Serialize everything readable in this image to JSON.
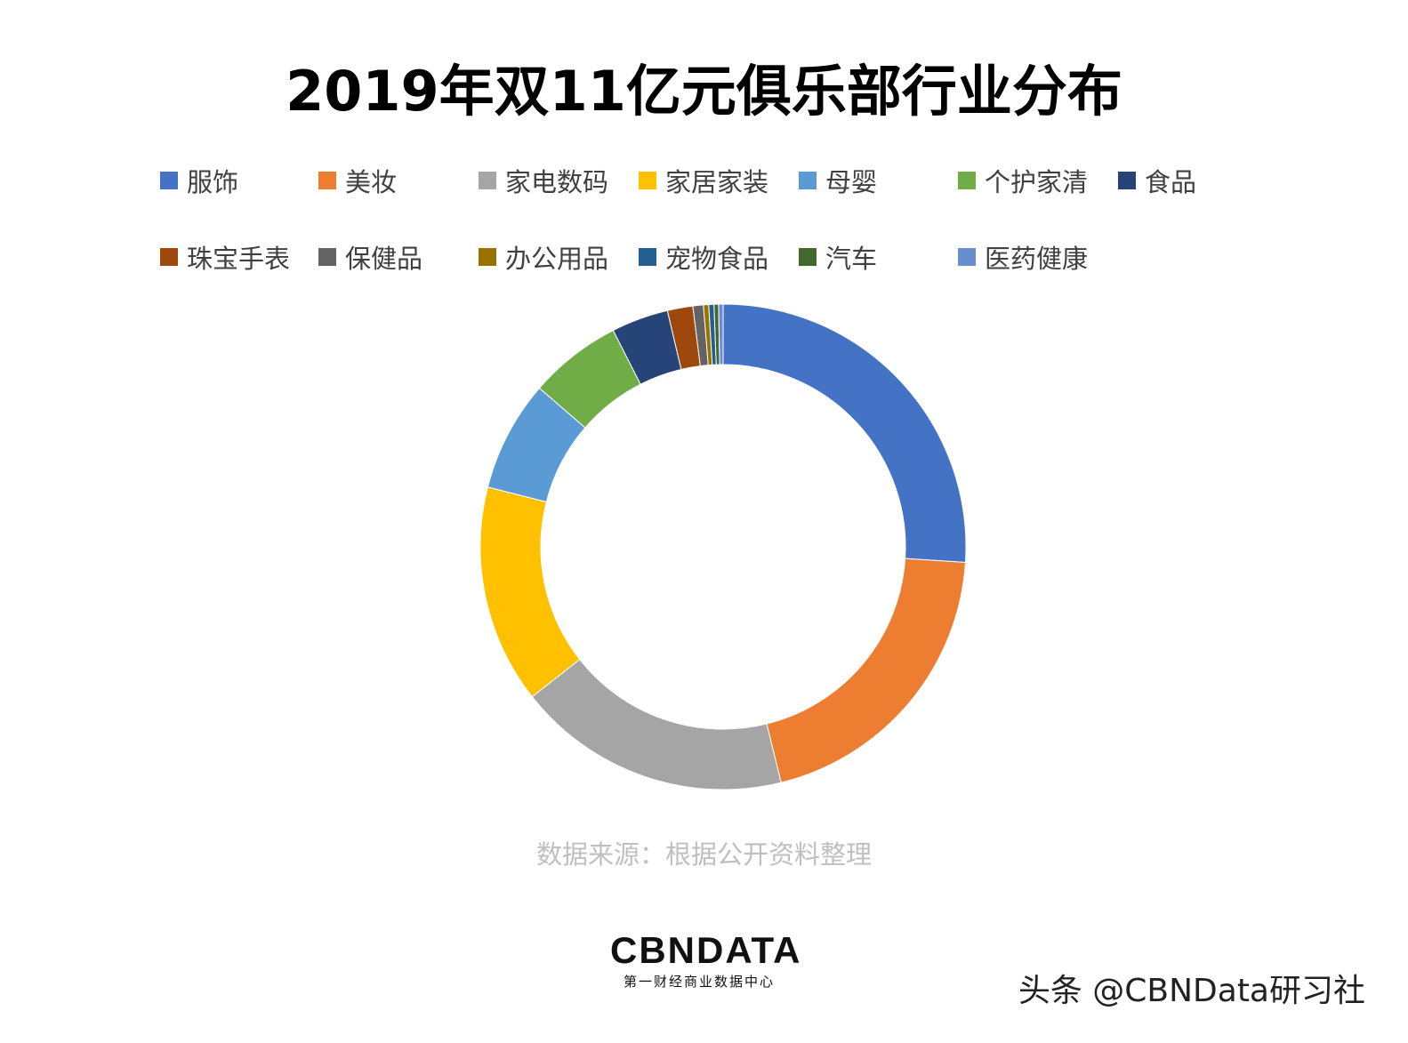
{
  "chart_data": {
    "type": "donut",
    "title": "2019年双11亿元俱乐部行业分布",
    "legend_position": "top",
    "slices": [
      {
        "name": "服饰",
        "value": 26.1,
        "color": "#4472C4"
      },
      {
        "name": "美妆",
        "value": 20.2,
        "color": "#ED7D31"
      },
      {
        "name": "家电数码",
        "value": 18.3,
        "color": "#A5A5A5"
      },
      {
        "name": "家居家装",
        "value": 14.6,
        "color": "#FFC000"
      },
      {
        "name": "母婴",
        "value": 7.4,
        "color": "#5B9BD5"
      },
      {
        "name": "个护家清",
        "value": 6.2,
        "color": "#70AD47"
      },
      {
        "name": "食品",
        "value": 3.8,
        "color": "#264478"
      },
      {
        "name": "珠宝手表",
        "value": 1.7,
        "color": "#9E480E"
      },
      {
        "name": "保健品",
        "value": 0.7,
        "color": "#636363"
      },
      {
        "name": "办公用品",
        "value": 0.35,
        "color": "#997300"
      },
      {
        "name": "宠物食品",
        "value": 0.35,
        "color": "#255E91"
      },
      {
        "name": "汽车",
        "value": 0.3,
        "color": "#43682B"
      },
      {
        "name": "医药健康",
        "value": 0.3,
        "color": "#698ED0"
      }
    ]
  },
  "source": "数据来源：根据公开资料整理",
  "logo": {
    "main": "CBNDATA",
    "sub": "第一财经商业数据中心"
  },
  "watermark": "头条 @CBNData研习社"
}
